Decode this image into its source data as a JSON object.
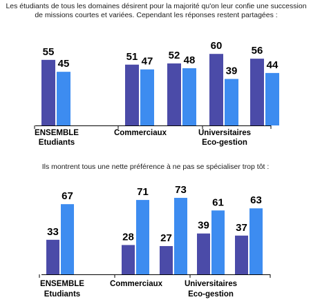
{
  "captions": {
    "top": "Les étudiants de tous les domaines désirent pour la majorité qu'on leur confie une succession de missions courtes et variées. Cependant les réponses restent partagées :",
    "bottom": "Ils montrent tous une nette préférence à ne pas se spécialiser trop tôt :"
  },
  "colors": {
    "dark": "#4b4ba8",
    "light": "#3d8cf0",
    "axis": "#000000"
  },
  "chart_data": [
    {
      "type": "bar",
      "groups": [
        {
          "values": [
            55,
            45
          ]
        },
        {
          "values": []
        },
        {
          "values": [
            51,
            47
          ]
        },
        {
          "values": [
            52,
            48
          ]
        },
        {
          "values": [
            60,
            39
          ]
        },
        {
          "values": [
            56,
            44
          ]
        }
      ],
      "category_labels": [
        {
          "lines": [
            "ENSEMBLE",
            "Etudiants"
          ]
        },
        {
          "lines": [
            "Commerciaux"
          ]
        },
        {
          "lines": [
            "Universitaires",
            "Eco-gestion"
          ]
        }
      ],
      "ylim": [
        0,
        100
      ]
    },
    {
      "type": "bar",
      "groups": [
        {
          "values": [
            33,
            67
          ]
        },
        {
          "values": []
        },
        {
          "values": [
            28,
            71
          ]
        },
        {
          "values": [
            27,
            73
          ]
        },
        {
          "values": [
            39,
            61
          ]
        },
        {
          "values": [
            37,
            63
          ]
        }
      ],
      "category_labels": [
        {
          "lines": [
            "ENSEMBLE",
            "Etudiants"
          ]
        },
        {
          "lines": [
            "Commerciaux"
          ]
        },
        {
          "lines": [
            "Universitaires",
            "Eco-gestion"
          ]
        }
      ],
      "ylim": [
        0,
        100
      ]
    }
  ]
}
